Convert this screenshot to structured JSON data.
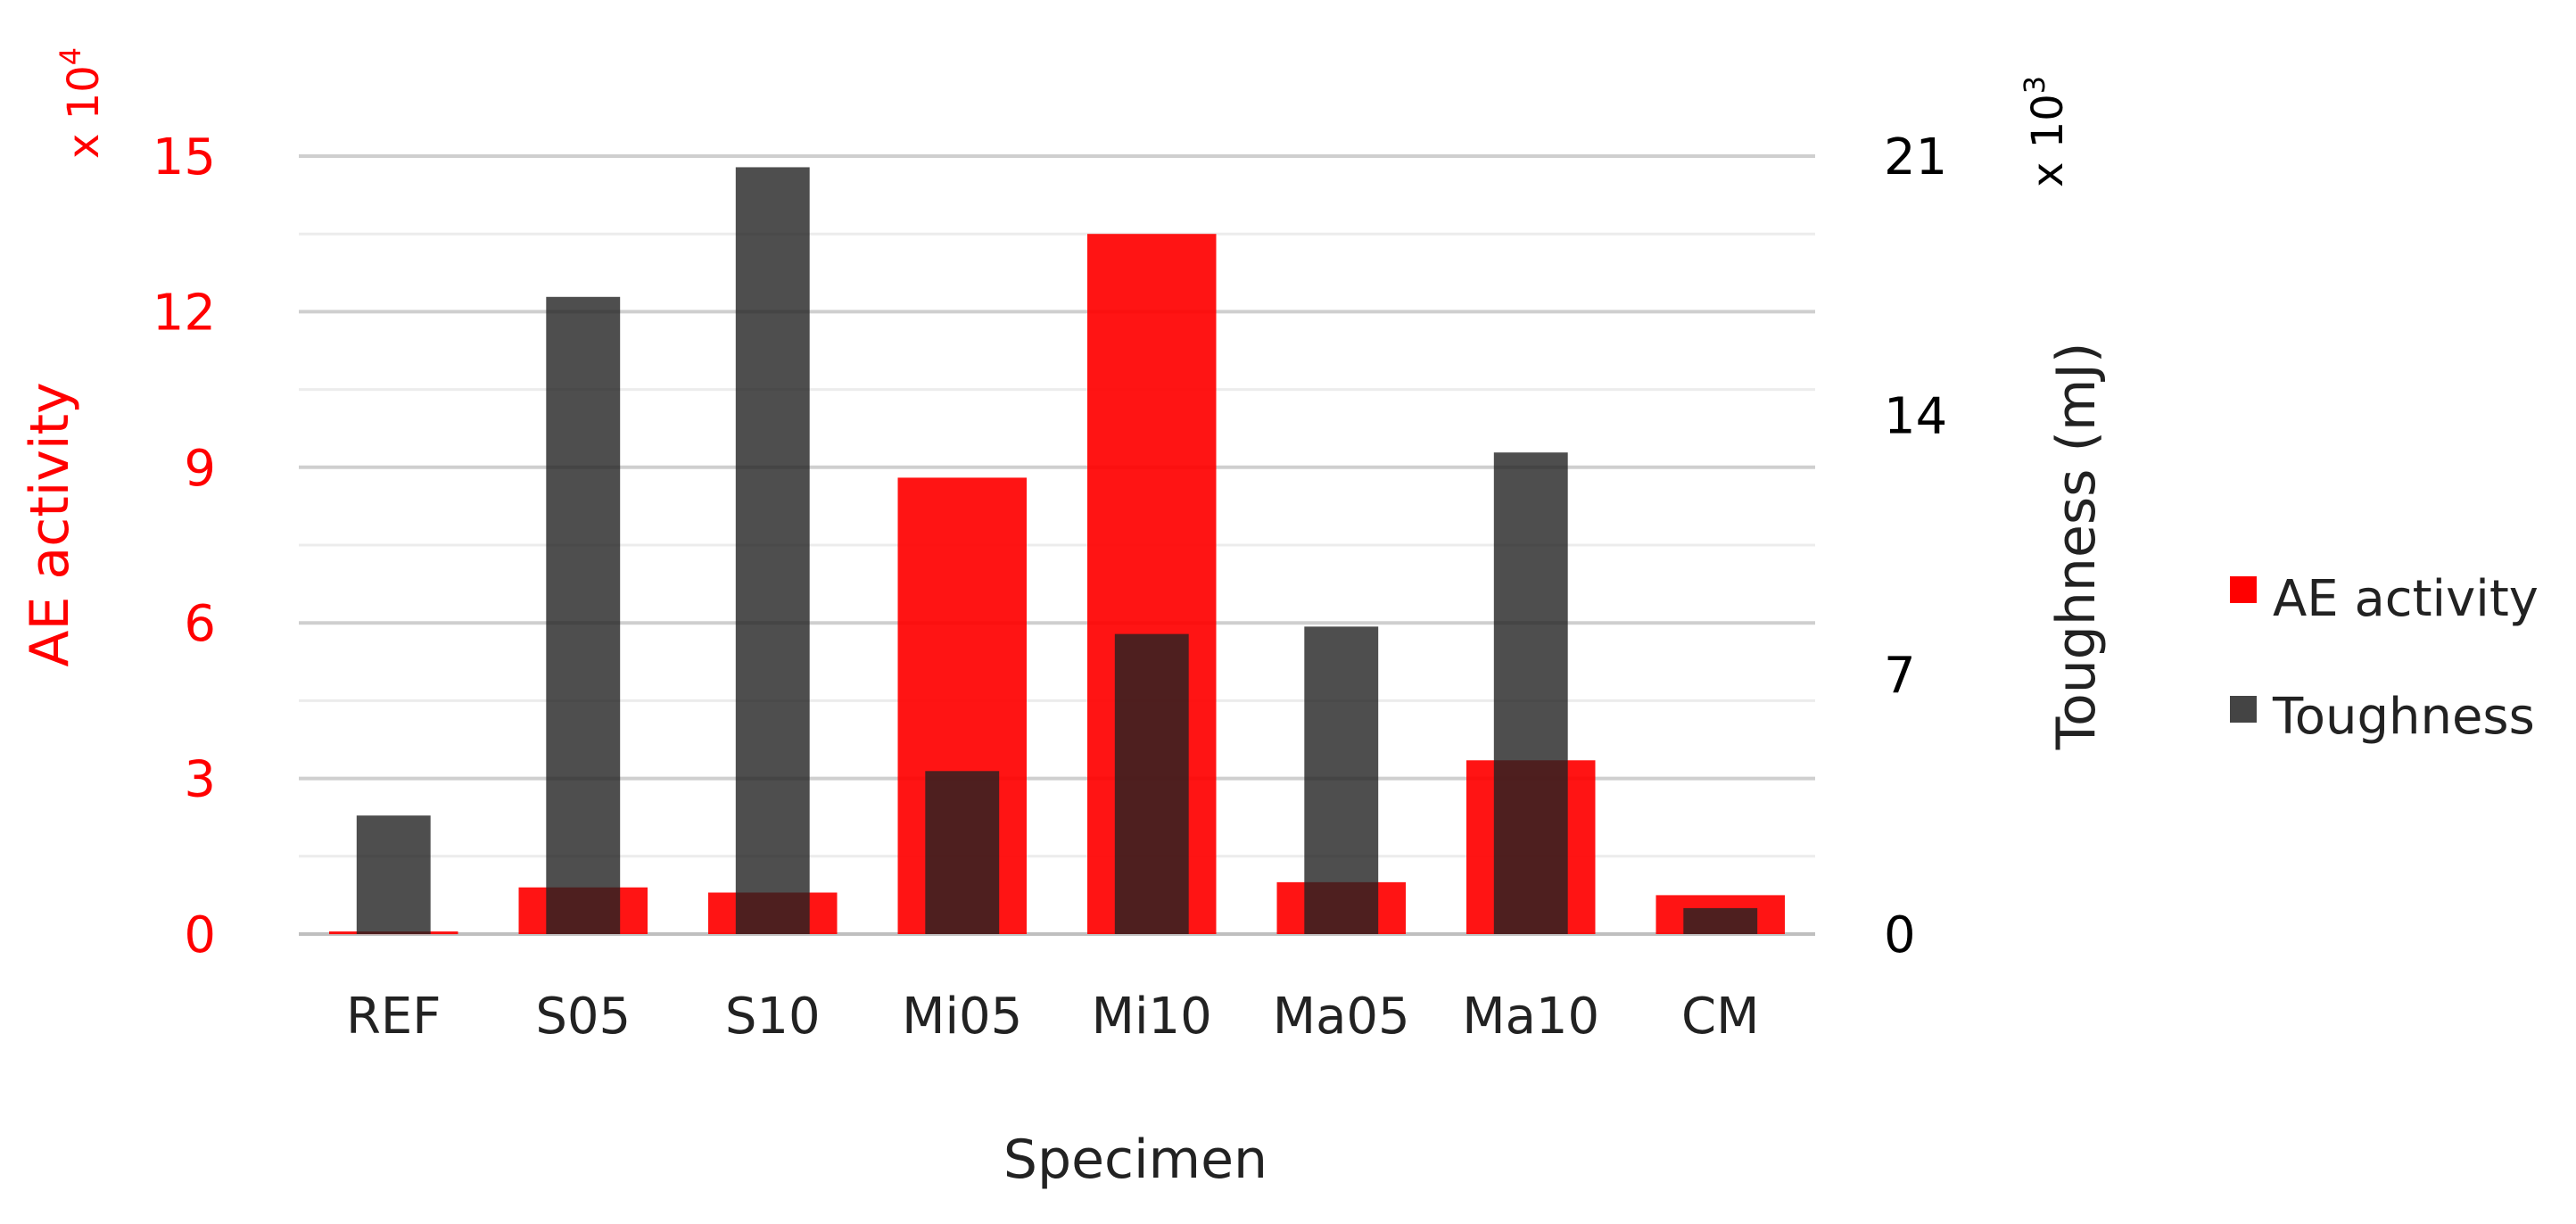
{
  "chart_data": {
    "type": "bar",
    "xlabel": "Specimen",
    "categories": [
      "REF",
      "S05",
      "S10",
      "Mi05",
      "Mi10",
      "Ma05",
      "Ma10",
      "CM"
    ],
    "series": [
      {
        "name": "AE activity",
        "axis": "left",
        "color": "#ff0000",
        "opacity": 0.92,
        "values": [
          0.05,
          0.9,
          0.8,
          8.8,
          13.5,
          1.0,
          3.35,
          0.75
        ]
      },
      {
        "name": "Toughness",
        "axis": "right",
        "color": "#222222",
        "opacity": 0.8,
        "values": [
          3.2,
          17.2,
          20.7,
          4.4,
          8.1,
          8.3,
          13.0,
          0.7
        ]
      }
    ],
    "left_axis": {
      "label": "AE activity",
      "multiplier": "x 10",
      "exponent": "4",
      "ticks": [
        "0",
        "3",
        "6",
        "9",
        "12",
        "15"
      ],
      "ylim": [
        0,
        15
      ],
      "color": "#ff0000"
    },
    "right_axis": {
      "label": "Toughness (mJ)",
      "multiplier": "x 10",
      "exponent": "3",
      "ticks": [
        "0",
        "7",
        "14",
        "21"
      ],
      "ylim": [
        0,
        21
      ],
      "color": "#000000"
    },
    "grid": true,
    "grid_color": "#d9d9d9",
    "legend_position": "right"
  }
}
